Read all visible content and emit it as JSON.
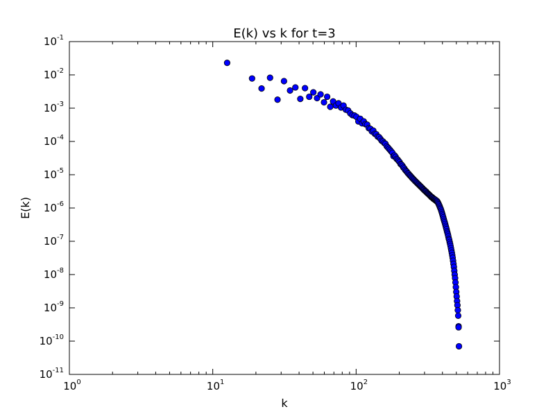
{
  "chart_data": {
    "type": "scatter",
    "title": "E(k) vs k for t=3",
    "xlabel": "k",
    "ylabel": "E(k)",
    "xscale": "log",
    "yscale": "log",
    "xlim": [
      1,
      1000
    ],
    "ylim": [
      1e-11,
      0.1
    ],
    "grid": false,
    "marker_color": "#0000ff",
    "marker_edge": "#000000",
    "x_ticks": [
      {
        "base": "10",
        "exp": "0"
      },
      {
        "base": "10",
        "exp": "1"
      },
      {
        "base": "10",
        "exp": "2"
      },
      {
        "base": "10",
        "exp": "3"
      }
    ],
    "y_ticks": [
      {
        "base": "10",
        "exp": "-11"
      },
      {
        "base": "10",
        "exp": "-10"
      },
      {
        "base": "10",
        "exp": "-9"
      },
      {
        "base": "10",
        "exp": "-8"
      },
      {
        "base": "10",
        "exp": "-7"
      },
      {
        "base": "10",
        "exp": "-6"
      },
      {
        "base": "10",
        "exp": "-5"
      },
      {
        "base": "10",
        "exp": "-4"
      },
      {
        "base": "10",
        "exp": "-3"
      },
      {
        "base": "10",
        "exp": "-2"
      },
      {
        "base": "10",
        "exp": "-1"
      }
    ],
    "points": [
      [
        12.6,
        0.023
      ],
      [
        18.8,
        0.0078
      ],
      [
        21.9,
        0.0039
      ],
      [
        25.1,
        0.0082
      ],
      [
        28.3,
        0.0018
      ],
      [
        31.4,
        0.0065
      ],
      [
        34.6,
        0.0034
      ],
      [
        37.7,
        0.0042
      ],
      [
        40.8,
        0.0019
      ],
      [
        44.0,
        0.004
      ],
      [
        47.1,
        0.0022
      ],
      [
        50.3,
        0.003
      ],
      [
        53.4,
        0.002
      ],
      [
        56.5,
        0.0026
      ],
      [
        59.7,
        0.0015
      ],
      [
        62.8,
        0.0022
      ],
      [
        66.0,
        0.0011
      ],
      [
        69.1,
        0.0016
      ],
      [
        72.3,
        0.0012
      ],
      [
        75.4,
        0.0014
      ],
      [
        78.5,
        0.00105
      ],
      [
        81.7,
        0.0012
      ],
      [
        84.8,
        0.0009
      ],
      [
        88.0,
        0.00085
      ],
      [
        91.1,
        0.0007
      ],
      [
        94.2,
        0.00062
      ],
      [
        97.4,
        0.0006
      ],
      [
        100.5,
        0.00055
      ],
      [
        103.7,
        0.0004
      ],
      [
        106.8,
        0.00048
      ],
      [
        110.0,
        0.00035
      ],
      [
        113.1,
        0.0004
      ],
      [
        116.2,
        0.00033
      ],
      [
        119.4,
        0.00032
      ],
      [
        122.5,
        0.00025
      ],
      [
        125.7,
        0.00024
      ],
      [
        128.8,
        0.0002
      ],
      [
        131.9,
        0.00021
      ],
      [
        135.1,
        0.00017
      ],
      [
        138.2,
        0.000165
      ],
      [
        141.4,
        0.00014
      ],
      [
        144.5,
        0.000135
      ],
      [
        147.7,
        0.00012
      ],
      [
        150.8,
        0.000105
      ],
      [
        153.9,
        0.0001
      ],
      [
        157.1,
        9e-05
      ],
      [
        160.2,
        8.5e-05
      ],
      [
        163.4,
        7.2e-05
      ],
      [
        166.5,
        6.6e-05
      ],
      [
        169.6,
        6e-05
      ],
      [
        172.8,
        5.5e-05
      ],
      [
        175.9,
        5e-05
      ],
      [
        179.1,
        4.55e-05
      ],
      [
        182.2,
        3.6e-05
      ],
      [
        185.4,
        3.8e-05
      ],
      [
        188.5,
        3.45e-05
      ],
      [
        191.6,
        3e-05
      ],
      [
        194.8,
        2.85e-05
      ],
      [
        197.9,
        2.6e-05
      ],
      [
        201.1,
        2.4e-05
      ],
      [
        204.2,
        2.1e-05
      ],
      [
        207.3,
        2e-05
      ],
      [
        210.5,
        1.85e-05
      ],
      [
        213.6,
        1.65e-05
      ],
      [
        216.8,
        1.55e-05
      ],
      [
        219.9,
        1.4e-05
      ],
      [
        223.1,
        1.3e-05
      ],
      [
        226.2,
        1.22e-05
      ],
      [
        229.3,
        1.12e-05
      ],
      [
        232.5,
        1.06e-05
      ],
      [
        235.6,
        9.8e-06
      ],
      [
        238.8,
        9.3e-06
      ],
      [
        241.9,
        8.7e-06
      ],
      [
        245.0,
        8.2e-06
      ],
      [
        248.2,
        7.7e-06
      ],
      [
        251.3,
        7.3e-06
      ],
      [
        254.5,
        6.9e-06
      ],
      [
        257.6,
        6.5e-06
      ],
      [
        260.8,
        6.2e-06
      ],
      [
        263.9,
        5.9e-06
      ],
      [
        267.0,
        5.6e-06
      ],
      [
        270.2,
        5.3e-06
      ],
      [
        273.3,
        5.1e-06
      ],
      [
        276.5,
        4.8e-06
      ],
      [
        279.6,
        4.6e-06
      ],
      [
        282.7,
        4.4e-06
      ],
      [
        285.9,
        4.2e-06
      ],
      [
        289.0,
        4e-06
      ],
      [
        292.2,
        3.8e-06
      ],
      [
        295.3,
        3.6e-06
      ],
      [
        298.5,
        3.5e-06
      ],
      [
        301.6,
        3.3e-06
      ],
      [
        304.7,
        3.2e-06
      ],
      [
        307.9,
        3.1e-06
      ],
      [
        311.0,
        2.9e-06
      ],
      [
        314.2,
        2.8e-06
      ],
      [
        317.3,
        2.7e-06
      ],
      [
        320.4,
        2.6e-06
      ],
      [
        323.6,
        2.5e-06
      ],
      [
        326.7,
        2.4e-06
      ],
      [
        329.9,
        2.3e-06
      ],
      [
        333.0,
        2.2e-06
      ],
      [
        336.2,
        2.1e-06
      ],
      [
        339.3,
        2.1e-06
      ],
      [
        342.4,
        2e-06
      ],
      [
        345.6,
        1.9e-06
      ],
      [
        348.7,
        1.9e-06
      ],
      [
        351.9,
        1.8e-06
      ],
      [
        355.0,
        1.8e-06
      ],
      [
        358.1,
        1.7e-06
      ],
      [
        361.3,
        1.7e-06
      ],
      [
        364.4,
        1.6e-06
      ],
      [
        367.6,
        1.6e-06
      ],
      [
        370.7,
        1.5e-06
      ],
      [
        373.8,
        1.4e-06
      ],
      [
        377.0,
        1.3e-06
      ],
      [
        380.1,
        1.2e-06
      ],
      [
        383.3,
        1.1e-06
      ],
      [
        386.4,
        1e-06
      ],
      [
        389.6,
        9.3e-07
      ],
      [
        392.7,
        8.3e-07
      ],
      [
        395.8,
        7.4e-07
      ],
      [
        399.0,
        6.6e-07
      ],
      [
        402.1,
        5.9e-07
      ],
      [
        405.3,
        5.2e-07
      ],
      [
        408.4,
        4.6e-07
      ],
      [
        411.5,
        4.1e-07
      ],
      [
        414.7,
        3.7e-07
      ],
      [
        417.8,
        3.3e-07
      ],
      [
        421.0,
        2.9e-07
      ],
      [
        424.1,
        2.6e-07
      ],
      [
        427.3,
        2.3e-07
      ],
      [
        430.4,
        2e-07
      ],
      [
        433.5,
        1.8e-07
      ],
      [
        436.7,
        1.6e-07
      ],
      [
        439.8,
        1.4e-07
      ],
      [
        443.0,
        1.2e-07
      ],
      [
        446.1,
        1.1e-07
      ],
      [
        449.2,
        9.5e-08
      ],
      [
        452.4,
        8.3e-08
      ],
      [
        455.5,
        7.2e-08
      ],
      [
        458.7,
        6.2e-08
      ],
      [
        461.8,
        5.3e-08
      ],
      [
        465.0,
        4.5e-08
      ],
      [
        468.1,
        3.8e-08
      ],
      [
        471.2,
        3.2e-08
      ],
      [
        474.4,
        2.6e-08
      ],
      [
        477.5,
        2.1e-08
      ],
      [
        480.7,
        1.7e-08
      ],
      [
        483.8,
        1.3e-08
      ],
      [
        486.9,
        1e-08
      ],
      [
        490.1,
        7.8e-09
      ],
      [
        493.2,
        5.8e-09
      ],
      [
        496.4,
        4.2e-09
      ],
      [
        499.5,
        3e-09
      ],
      [
        502.7,
        2.2e-09
      ],
      [
        505.8,
        1.6e-09
      ],
      [
        508.9,
        1.2e-09
      ],
      [
        512.1,
        8.5e-10
      ],
      [
        515.2,
        5.8e-10
      ],
      [
        518.4,
        2.8e-10
      ],
      [
        518.4,
        2.6e-10
      ],
      [
        521.5,
        7e-11
      ]
    ]
  }
}
